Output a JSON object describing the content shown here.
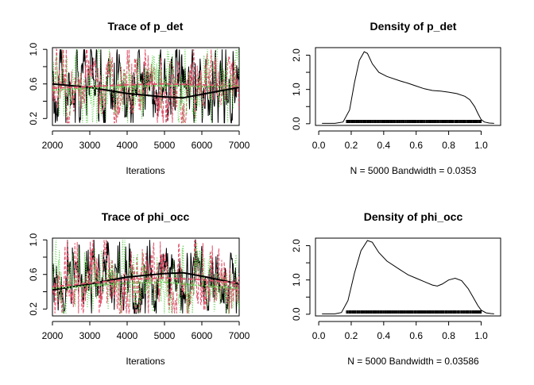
{
  "colors": {
    "chain1": "#000000",
    "chain2": "#DF536B",
    "chain3": "#61D04F"
  },
  "chart_data": [
    {
      "type": "line",
      "title": "Trace of p_det",
      "xlabel": "Iterations",
      "xlim": [
        2000,
        7000
      ],
      "ylim": [
        0.12,
        1.02
      ],
      "xticks": [
        "2000",
        "3000",
        "4000",
        "5000",
        "6000",
        "7000"
      ],
      "yticks": [
        "0.2",
        "0.6",
        "1.0"
      ],
      "ytick_values": [
        0.2,
        0.6,
        1.0
      ],
      "series": [
        {
          "color": "#000000",
          "center": 0.55,
          "sd": 0.22,
          "smooth_x": [
            2000,
            3000,
            4000,
            5000,
            5500,
            6000,
            7000
          ],
          "smooth_y": [
            0.6,
            0.56,
            0.49,
            0.45,
            0.44,
            0.48,
            0.56
          ]
        },
        {
          "color": "#DF536B",
          "center": 0.56,
          "sd": 0.21,
          "smooth_x": [
            2000,
            3000,
            4000,
            5000,
            6000,
            7000
          ],
          "smooth_y": [
            0.55,
            0.57,
            0.59,
            0.6,
            0.59,
            0.57
          ]
        },
        {
          "color": "#61D04F",
          "center": 0.55,
          "sd": 0.22,
          "smooth_x": [
            2000,
            3000,
            4000,
            5000,
            6000,
            7000
          ],
          "smooth_y": [
            0.53,
            0.55,
            0.57,
            0.58,
            0.57,
            0.58
          ]
        }
      ]
    },
    {
      "type": "line",
      "title": "Density of p_det",
      "xlabel": "N = 5000   Bandwidth = 0.0353",
      "xlim": [
        -0.02,
        1.12
      ],
      "ylim": [
        -0.05,
        2.22
      ],
      "xticks": [
        "0.0",
        "0.2",
        "0.4",
        "0.6",
        "0.8",
        "1.0"
      ],
      "xtick_values": [
        0.0,
        0.2,
        0.4,
        0.6,
        0.8,
        1.0
      ],
      "yticks": [
        "0.0",
        "1.0",
        "2.0"
      ],
      "ytick_values": [
        0.0,
        1.0,
        2.0
      ],
      "x": [
        0.02,
        0.1,
        0.15,
        0.19,
        0.22,
        0.25,
        0.28,
        0.3,
        0.33,
        0.37,
        0.42,
        0.5,
        0.55,
        0.6,
        0.65,
        0.7,
        0.75,
        0.8,
        0.85,
        0.9,
        0.93,
        0.96,
        0.98,
        1.0,
        1.02,
        1.05,
        1.08
      ],
      "y": [
        0.01,
        0.01,
        0.05,
        0.4,
        1.2,
        1.85,
        2.1,
        2.05,
        1.75,
        1.5,
        1.38,
        1.25,
        1.18,
        1.1,
        1.02,
        0.97,
        0.95,
        0.92,
        0.88,
        0.8,
        0.7,
        0.5,
        0.3,
        0.12,
        0.05,
        0.02,
        0.01
      ],
      "rug": [
        0.17,
        1.0
      ]
    },
    {
      "type": "line",
      "title": "Trace of phi_occ",
      "xlabel": "Iterations",
      "xlim": [
        2000,
        7000
      ],
      "ylim": [
        0.12,
        1.02
      ],
      "xticks": [
        "2000",
        "3000",
        "4000",
        "5000",
        "6000",
        "7000"
      ],
      "yticks": [
        "0.2",
        "0.6",
        "1.0"
      ],
      "ytick_values": [
        0.2,
        0.6,
        1.0
      ],
      "series": [
        {
          "color": "#000000",
          "center": 0.52,
          "sd": 0.22,
          "smooth_x": [
            2000,
            3000,
            4000,
            5000,
            5500,
            6000,
            7000
          ],
          "smooth_y": [
            0.42,
            0.49,
            0.57,
            0.61,
            0.62,
            0.58,
            0.49
          ]
        },
        {
          "color": "#DF536B",
          "center": 0.5,
          "sd": 0.21,
          "smooth_x": [
            2000,
            3000,
            4000,
            5000,
            6000,
            7000
          ],
          "smooth_y": [
            0.46,
            0.5,
            0.54,
            0.56,
            0.54,
            0.5
          ]
        },
        {
          "color": "#61D04F",
          "center": 0.5,
          "sd": 0.21,
          "smooth_x": [
            2000,
            3000,
            4000,
            5000,
            6000,
            7000
          ],
          "smooth_y": [
            0.44,
            0.47,
            0.5,
            0.51,
            0.47,
            0.44
          ]
        }
      ]
    },
    {
      "type": "line",
      "title": "Density of phi_occ",
      "xlabel": "N = 5000   Bandwidth = 0.03586",
      "xlim": [
        -0.02,
        1.12
      ],
      "ylim": [
        -0.05,
        2.22
      ],
      "xticks": [
        "0.0",
        "0.2",
        "0.4",
        "0.6",
        "0.8",
        "1.0"
      ],
      "xtick_values": [
        0.0,
        0.2,
        0.4,
        0.6,
        0.8,
        1.0
      ],
      "yticks": [
        "0.0",
        "1.0",
        "2.0"
      ],
      "ytick_values": [
        0.0,
        1.0,
        2.0
      ],
      "x": [
        0.02,
        0.1,
        0.14,
        0.18,
        0.22,
        0.26,
        0.3,
        0.33,
        0.37,
        0.42,
        0.5,
        0.55,
        0.6,
        0.65,
        0.7,
        0.73,
        0.76,
        0.8,
        0.84,
        0.88,
        0.92,
        0.95,
        0.98,
        1.0,
        1.03,
        1.06,
        1.08
      ],
      "y": [
        0.01,
        0.01,
        0.05,
        0.4,
        1.2,
        1.85,
        2.15,
        2.1,
        1.8,
        1.55,
        1.3,
        1.15,
        1.05,
        0.95,
        0.85,
        0.82,
        0.88,
        1.0,
        1.05,
        0.98,
        0.75,
        0.5,
        0.25,
        0.12,
        0.04,
        0.02,
        0.01
      ],
      "rug": [
        0.17,
        1.0
      ]
    }
  ]
}
